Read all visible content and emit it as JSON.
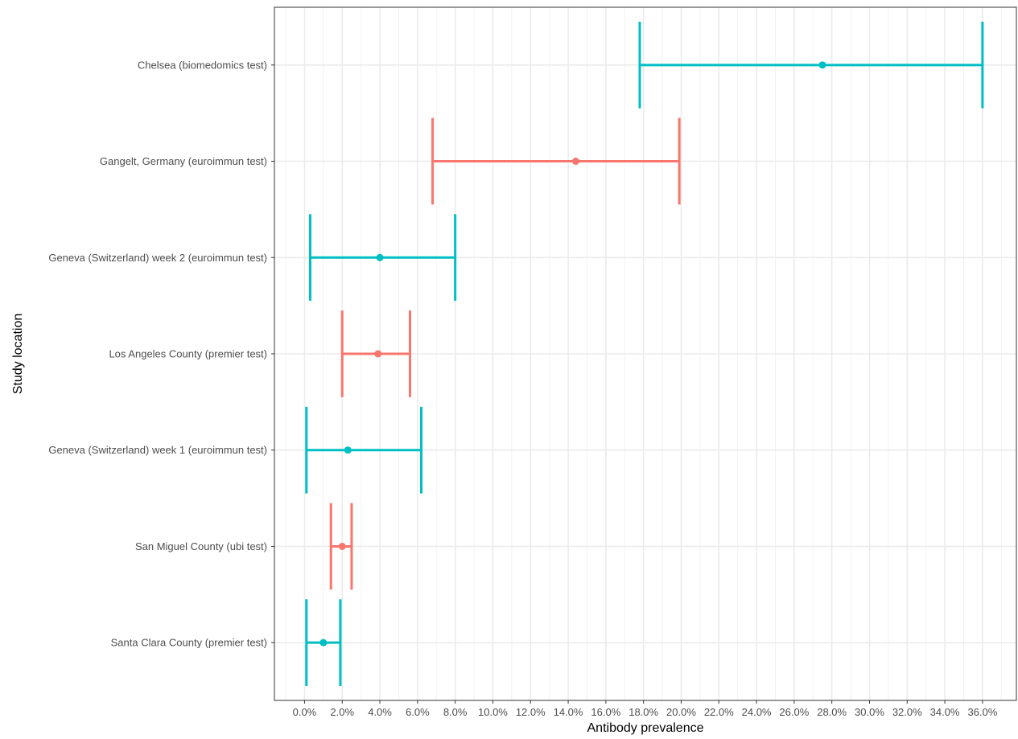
{
  "chart_data": {
    "type": "errorbar",
    "xlabel": "Antibody prevalence",
    "ylabel": "Study location",
    "xlim": [
      -1.6,
      37.8
    ],
    "x_ticks": [
      0,
      2,
      4,
      6,
      8,
      10,
      12,
      14,
      16,
      18,
      20,
      22,
      24,
      26,
      28,
      30,
      32,
      34,
      36
    ],
    "x_tick_labels": [
      "0.0%",
      "2.0%",
      "4.0%",
      "6.0%",
      "8.0%",
      "10.0%",
      "12.0%",
      "14.0%",
      "16.0%",
      "18.0%",
      "20.0%",
      "22.0%",
      "24.0%",
      "26.0%",
      "28.0%",
      "30.0%",
      "32.0%",
      "34.0%",
      "36.0%"
    ],
    "grid": true,
    "rows": [
      {
        "label": "Chelsea (biomedomics test)",
        "estimate": 27.5,
        "lower": 17.8,
        "upper": 36.0,
        "color": "#00BFC4"
      },
      {
        "label": "Gangelt, Germany (euroimmun test)",
        "estimate": 14.4,
        "lower": 6.8,
        "upper": 19.9,
        "color": "#F8766D"
      },
      {
        "label": "Geneva (Switzerland) week 2 (euroimmun test)",
        "estimate": 4.0,
        "lower": 0.3,
        "upper": 8.0,
        "color": "#00BFC4"
      },
      {
        "label": "Los Angeles County (premier test)",
        "estimate": 3.9,
        "lower": 2.0,
        "upper": 5.6,
        "color": "#F8766D"
      },
      {
        "label": "Geneva (Switzerland) week 1 (euroimmun test)",
        "estimate": 2.3,
        "lower": 0.1,
        "upper": 6.2,
        "color": "#00BFC4"
      },
      {
        "label": "San Miguel County (ubi test)",
        "estimate": 2.0,
        "lower": 1.4,
        "upper": 2.5,
        "color": "#F8766D"
      },
      {
        "label": "Santa Clara County (premier test)",
        "estimate": 1.0,
        "lower": 0.1,
        "upper": 1.9,
        "color": "#00BFC4"
      }
    ]
  }
}
